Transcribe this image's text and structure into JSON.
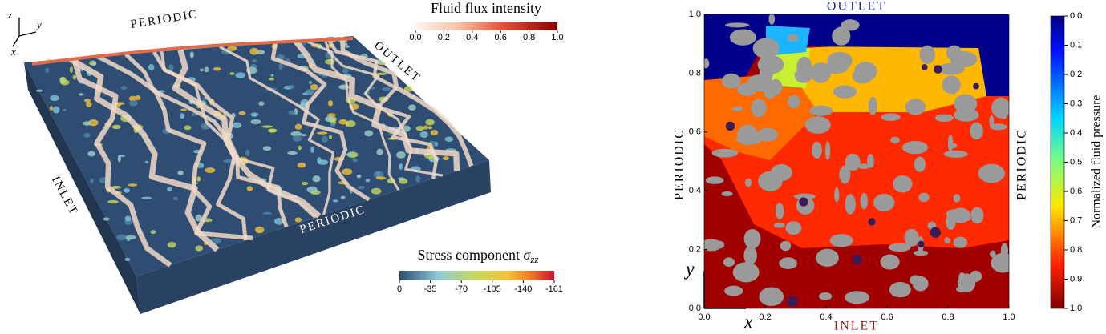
{
  "left_panel": {
    "edge_labels": {
      "back_left": "PERIODIC",
      "back_right": "OUTLET",
      "front_left": "INLET",
      "front_right": "PERIODIC"
    },
    "axis_triad": {
      "z": "z",
      "y": "y",
      "x": "x"
    },
    "flux_colorbar": {
      "title": "Fluid flux intensity",
      "ticks": [
        "0.0",
        "0.2",
        "0.4",
        "0.6",
        "0.8",
        "1.0"
      ]
    },
    "stress_colorbar": {
      "title": "Stress component",
      "symbol": "σ",
      "subscript": "zz",
      "ticks": [
        "0",
        "-35",
        "-70",
        "-105",
        "-140",
        "-161"
      ]
    }
  },
  "right_panel": {
    "top_label": "OUTLET",
    "bottom_label": "INLET",
    "left_label": "PERIODIC",
    "right_label": "PERIODIC",
    "x_axis_label": "x",
    "y_axis_label": "y",
    "xticks": [
      "0.0",
      "0.2",
      "0.4",
      "0.6",
      "0.8",
      "1.0"
    ],
    "yticks": [
      "0.0",
      "0.2",
      "0.4",
      "0.6",
      "0.8",
      "1.0"
    ],
    "colorbar": {
      "title": "Normalized fluid pressure",
      "ticks": [
        "0.0",
        "0.1",
        "0.2",
        "0.3",
        "0.4",
        "0.5",
        "0.6",
        "0.7",
        "0.8",
        "0.9",
        "1.0"
      ]
    }
  }
}
